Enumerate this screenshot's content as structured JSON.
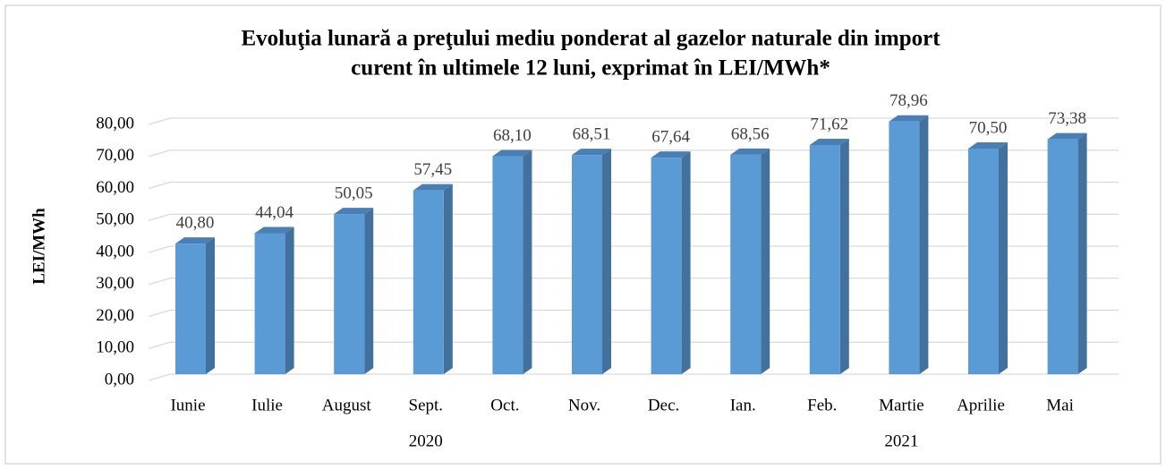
{
  "chart_data": {
    "type": "bar3d",
    "title": [
      "Evoluţia lunară a preţului mediu ponderat al gazelor naturale din import",
      "curent în ultimele 12 luni, exprimat în LEI/MWh*"
    ],
    "y_label": "LEI/MWh",
    "categories": [
      "Iunie",
      "Iulie",
      "August",
      "Sept.",
      "Oct.",
      "Nov.",
      "Dec.",
      "Ian.",
      "Feb.",
      "Martie",
      "Aprilie",
      "Mai"
    ],
    "category_groups": [
      {
        "label": "2020",
        "count": 7
      },
      {
        "label": "2021",
        "count": 5
      }
    ],
    "values": [
      40.8,
      44.04,
      50.05,
      57.45,
      68.1,
      68.51,
      67.64,
      68.56,
      71.62,
      78.96,
      70.5,
      73.38
    ],
    "value_labels": [
      "40,80",
      "44,04",
      "50,05",
      "57,45",
      "68,10",
      "68,51",
      "67,64",
      "68,56",
      "71,62",
      "78,96",
      "70,50",
      "73,38"
    ],
    "color": "#5b9bd5",
    "ylim": [
      0,
      80
    ],
    "yticks": [
      {
        "value": 0,
        "label": "0,00"
      },
      {
        "value": 10,
        "label": "10,00"
      },
      {
        "value": 20,
        "label": "20,00"
      },
      {
        "value": 30,
        "label": "30,00"
      },
      {
        "value": 40,
        "label": "40,00"
      },
      {
        "value": 50,
        "label": "50,00"
      },
      {
        "value": 60,
        "label": "60,00"
      },
      {
        "value": 70,
        "label": "70,00"
      },
      {
        "value": 80,
        "label": "80,00"
      }
    ],
    "grid": true
  }
}
